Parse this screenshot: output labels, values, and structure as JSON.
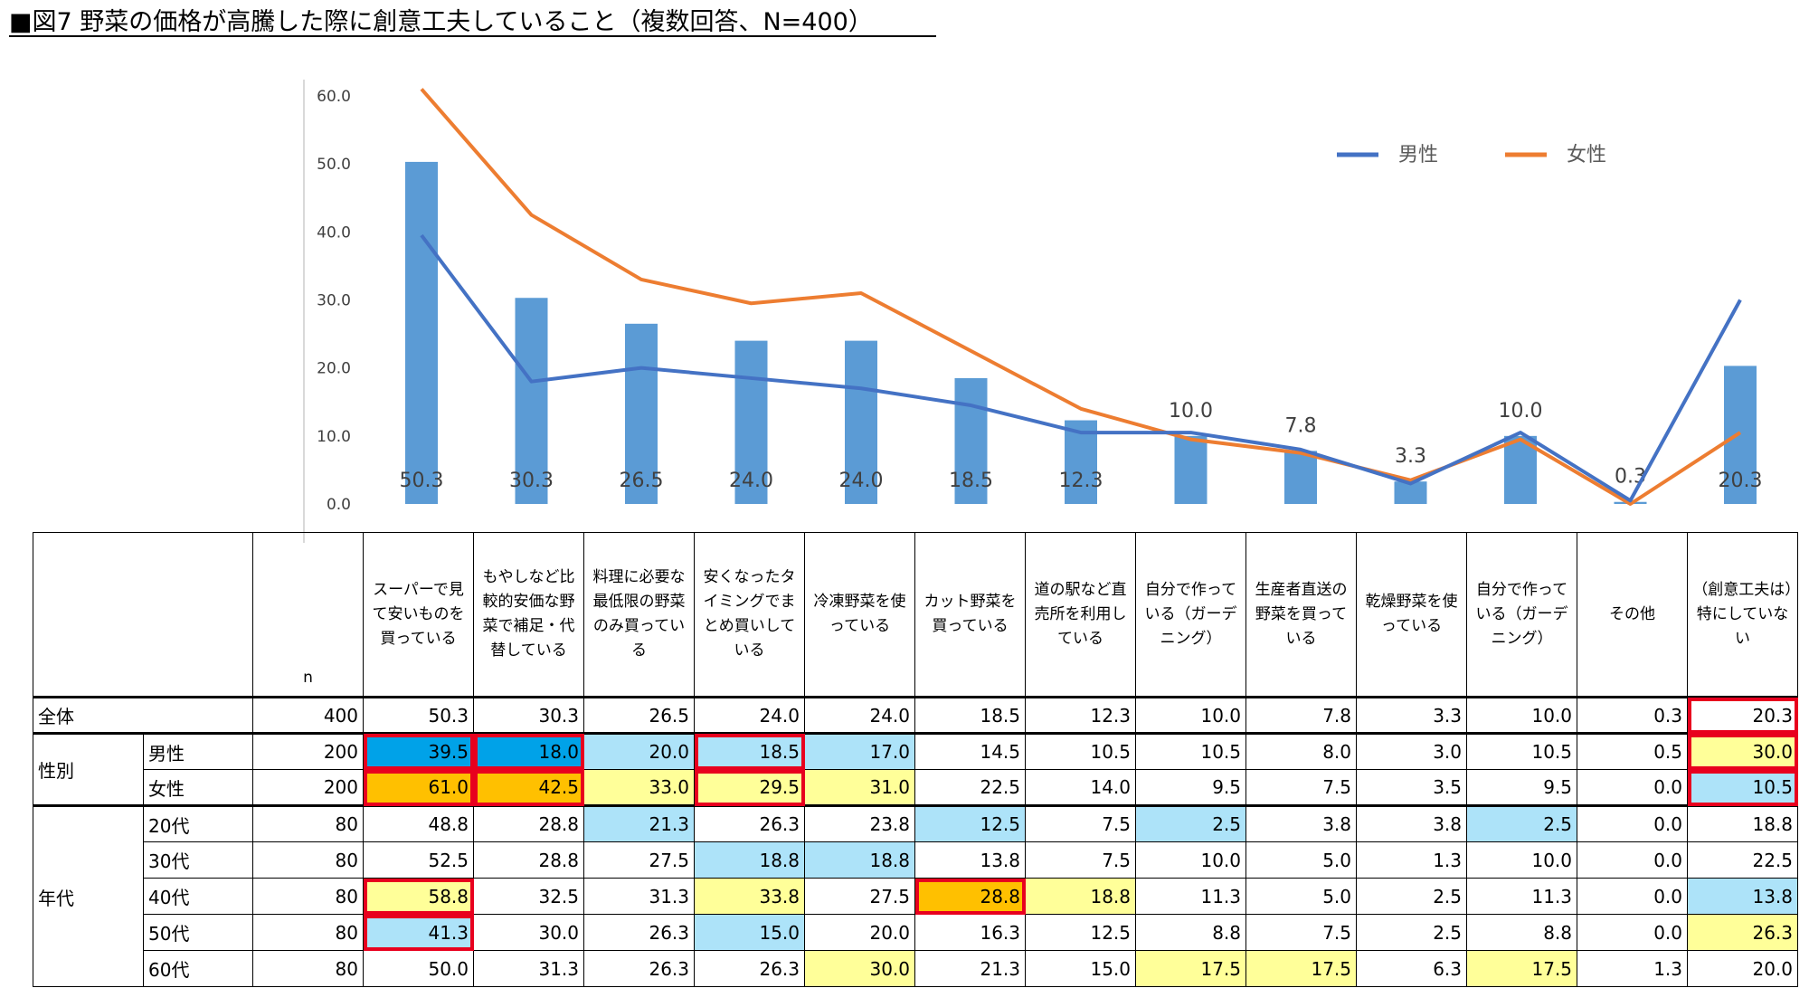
{
  "title": "■図7 野菜の価格が高騰した際に創意工夫していること（複数回答、N=400）",
  "colors": {
    "bar": "#5b9bd5",
    "male": "#4472c4",
    "female": "#ed7d31",
    "highlight": "#e8001e"
  },
  "chart_data": {
    "type": "bar+line",
    "categories": [
      "スーパーで見て安いものを買っている",
      "もやしなど比較的安価な野菜で補足・代替している",
      "料理に必要な最低限の野菜のみ買っている",
      "安くなったタイミングでまとめ買いしている",
      "冷凍野菜を使っている",
      "カット野菜を買っている",
      "道の駅など直売所を利用している",
      "自分で作っている（ガーデニング）",
      "生産者直送の野菜を買っている",
      "乾燥野菜を使っている",
      "自分で作っている（ガーデニング）",
      "その他",
      "（創意工夫は）特にしていない"
    ],
    "bar_values": [
      50.3,
      30.3,
      26.5,
      24.0,
      24.0,
      18.5,
      12.3,
      10.0,
      7.8,
      3.3,
      10.0,
      0.3,
      20.3
    ],
    "bar_labels": [
      "50.3",
      "30.3",
      "26.5",
      "24.0",
      "24.0",
      "18.5",
      "12.3",
      "10.0",
      "7.8",
      "3.3",
      "10.0",
      "0.3",
      "20.3"
    ],
    "series": [
      {
        "name": "男性",
        "values": [
          39.5,
          18.0,
          20.0,
          18.5,
          17.0,
          14.5,
          10.5,
          10.5,
          8.0,
          3.0,
          10.5,
          0.5,
          30.0
        ]
      },
      {
        "name": "女性",
        "values": [
          61.0,
          42.5,
          33.0,
          29.5,
          31.0,
          22.5,
          14.0,
          9.5,
          7.5,
          3.5,
          9.5,
          0.0,
          10.5
        ]
      }
    ],
    "y_ticks": [
      "0.0",
      "10.0",
      "20.0",
      "30.0",
      "40.0",
      "50.0",
      "60.0"
    ],
    "ylim": [
      0,
      60
    ],
    "legend_position": "top-right"
  },
  "table": {
    "n_label": "n",
    "headers": [
      "スーパーで見て安いものを買っている",
      "もやしなど比較的安価な野菜で補足・代替している",
      "料理に必要な最低限の野菜のみ買っている",
      "安くなったタイミングでまとめ買いしている",
      "冷凍野菜を使っている",
      "カット野菜を買っている",
      "道の駅など直売所を利用している",
      "自分で作っている（ガーデニング）",
      "生産者直送の野菜を買っている",
      "乾燥野菜を使っている",
      "自分で作っている（ガーデニング）",
      "その他",
      "（創意工夫は）特にしていない"
    ],
    "rows": [
      {
        "group": "全体",
        "label": "",
        "n": "400",
        "values": [
          "50.3",
          "30.3",
          "26.5",
          "24.0",
          "24.0",
          "18.5",
          "12.3",
          "10.0",
          "7.8",
          "3.3",
          "10.0",
          "0.3",
          "20.3"
        ]
      },
      {
        "group": "性別",
        "label": "男性",
        "n": "200",
        "values": [
          "39.5",
          "18.0",
          "20.0",
          "18.5",
          "17.0",
          "14.5",
          "10.5",
          "10.5",
          "8.0",
          "3.0",
          "10.5",
          "0.5",
          "30.0"
        ]
      },
      {
        "group": "",
        "label": "女性",
        "n": "200",
        "values": [
          "61.0",
          "42.5",
          "33.0",
          "29.5",
          "31.0",
          "22.5",
          "14.0",
          "9.5",
          "7.5",
          "3.5",
          "9.5",
          "0.0",
          "10.5"
        ]
      },
      {
        "group": "年代",
        "label": "20代",
        "n": "80",
        "values": [
          "48.8",
          "28.8",
          "21.3",
          "26.3",
          "23.8",
          "12.5",
          "7.5",
          "2.5",
          "3.8",
          "3.8",
          "2.5",
          "0.0",
          "18.8"
        ]
      },
      {
        "group": "",
        "label": "30代",
        "n": "80",
        "values": [
          "52.5",
          "28.8",
          "27.5",
          "18.8",
          "18.8",
          "13.8",
          "7.5",
          "10.0",
          "5.0",
          "1.3",
          "10.0",
          "0.0",
          "22.5"
        ]
      },
      {
        "group": "",
        "label": "40代",
        "n": "80",
        "values": [
          "58.8",
          "32.5",
          "31.3",
          "33.8",
          "27.5",
          "28.8",
          "18.8",
          "11.3",
          "5.0",
          "2.5",
          "11.3",
          "0.0",
          "13.8"
        ]
      },
      {
        "group": "",
        "label": "50代",
        "n": "80",
        "values": [
          "41.3",
          "30.0",
          "26.3",
          "15.0",
          "20.0",
          "16.3",
          "12.5",
          "8.8",
          "7.5",
          "2.5",
          "8.8",
          "0.0",
          "26.3"
        ]
      },
      {
        "group": "",
        "label": "60代",
        "n": "80",
        "values": [
          "50.0",
          "31.3",
          "26.3",
          "26.3",
          "30.0",
          "21.3",
          "15.0",
          "17.5",
          "17.5",
          "6.3",
          "17.5",
          "1.3",
          "20.0"
        ]
      }
    ]
  }
}
